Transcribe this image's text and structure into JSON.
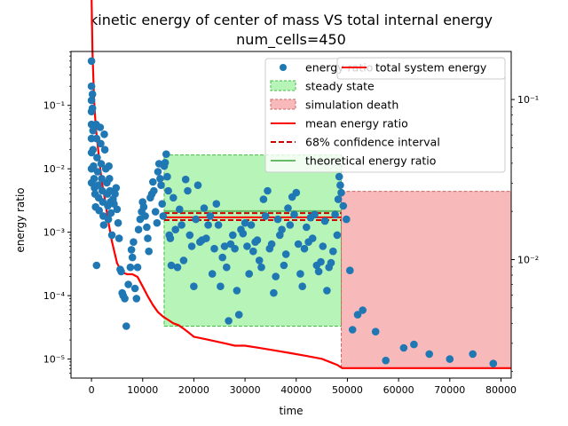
{
  "chart_data": {
    "type": "scatter",
    "title": "kinetic energy of center of mass VS total internal energy",
    "subtitle": "num_cells=450",
    "xlabel": "time",
    "ylabel": "energy ratio",
    "xlim": [
      -4000,
      82000
    ],
    "ylim_log10": [
      -5.3,
      -0.15
    ],
    "y2lim_log10": [
      -2.74,
      -0.7
    ],
    "x_ticks": [
      0,
      10000,
      20000,
      30000,
      40000,
      50000,
      60000,
      70000,
      80000
    ],
    "x_tick_labels": [
      "0",
      "10000",
      "20000",
      "30000",
      "40000",
      "50000",
      "60000",
      "70000",
      "80000"
    ],
    "y_ticks_log10": [
      -5,
      -4,
      -3,
      -2,
      -1
    ],
    "y_tick_labels": [
      "10⁻⁵",
      "10⁻⁴",
      "10⁻³",
      "10⁻²",
      "10⁻¹"
    ],
    "y2_ticks_log10": [
      -2,
      -1
    ],
    "y2_tick_labels": [
      "10⁻²",
      "10⁻¹"
    ],
    "legend_main": {
      "placement": "top-right",
      "entries": [
        {
          "label": "energy ratio",
          "kind": "marker",
          "color": "#1f77b4"
        },
        {
          "label": "steady state",
          "kind": "patch",
          "color": "#90ee90"
        },
        {
          "label": "simulation death",
          "kind": "patch",
          "color": "#f08080"
        },
        {
          "label": "mean energy ratio",
          "kind": "line",
          "color": "#ff0000"
        },
        {
          "label": "68% confidence interval",
          "kind": "dashed",
          "color": "#cc0000"
        },
        {
          "label": "theoretical energy ratio",
          "kind": "line",
          "color": "#66bb66"
        }
      ]
    },
    "legend_secondary": {
      "placement": "top-right",
      "entries": [
        {
          "label": "total system energy",
          "kind": "line",
          "color": "#ff0000"
        }
      ]
    },
    "regions": [
      {
        "name": "steady state",
        "x": [
          14200,
          48800
        ],
        "y": [
          3.3e-05,
          0.0165
        ],
        "color": "#90ee90"
      },
      {
        "name": "simulation death",
        "x": [
          48800,
          82000
        ],
        "y": [
          7.2e-06,
          0.0044
        ],
        "color": "#f08080"
      }
    ],
    "hlines": [
      {
        "name": "mean energy ratio",
        "y": 0.00172,
        "x": [
          14200,
          48800
        ],
        "color": "#ff0000",
        "style": "solid"
      },
      {
        "name": "68% confidence interval",
        "y": 0.002,
        "x": [
          14200,
          48800
        ],
        "color": "#cc0000",
        "style": "dashed"
      },
      {
        "name": "68% confidence interval",
        "y": 0.00155,
        "x": [
          14200,
          48800
        ],
        "color": "#cc0000",
        "style": "dashed"
      },
      {
        "name": "theoretical energy ratio",
        "y": 0.00215,
        "x": [
          14200,
          48800
        ],
        "color": "#66bb66",
        "style": "solid"
      }
    ],
    "total_system_energy": {
      "name": "total system energy",
      "axis": "right",
      "x": [
        0,
        200,
        500,
        800,
        1200,
        1600,
        2000,
        2600,
        3200,
        4000,
        5000,
        6000,
        7000,
        8000,
        9000,
        10000,
        11000,
        12000,
        13000,
        14000,
        15000,
        16000,
        17000,
        18000,
        19000,
        20000,
        22000,
        24000,
        26000,
        28000,
        30000,
        33000,
        36000,
        39000,
        42000,
        45000,
        48000,
        49000,
        50000,
        55000,
        60000,
        65000,
        70000,
        75000,
        80000,
        82000
      ],
      "y": [
        0.46,
        0.2,
        0.1,
        0.07,
        0.052,
        0.04,
        0.031,
        0.024,
        0.018,
        0.013,
        0.0095,
        0.0083,
        0.0081,
        0.0081,
        0.0078,
        0.0068,
        0.0059,
        0.0052,
        0.0047,
        0.0044,
        0.0042,
        0.004,
        0.0039,
        0.0037,
        0.0035,
        0.0033,
        0.0032,
        0.0031,
        0.003,
        0.0029,
        0.0029,
        0.0028,
        0.0027,
        0.0026,
        0.0025,
        0.0024,
        0.0022,
        0.0021,
        0.0021,
        0.0021,
        0.0021,
        0.0021,
        0.0021,
        0.0021,
        0.0021,
        0.0021
      ]
    },
    "energy_ratio": {
      "name": "energy ratio",
      "color": "#1f77b4",
      "points": [
        [
          0,
          0.5
        ],
        [
          0,
          0.2
        ],
        [
          0,
          0.12
        ],
        [
          0,
          0.08
        ],
        [
          0,
          0.05
        ],
        [
          0,
          0.03
        ],
        [
          0,
          0.018
        ],
        [
          0,
          0.01
        ],
        [
          0,
          0.006
        ],
        [
          200,
          0.15
        ],
        [
          200,
          0.09
        ],
        [
          300,
          0.04
        ],
        [
          300,
          0.02
        ],
        [
          400,
          0.011
        ],
        [
          500,
          0.007
        ],
        [
          600,
          0.005
        ],
        [
          700,
          0.004
        ],
        [
          800,
          0.0025
        ],
        [
          900,
          0.05
        ],
        [
          1000,
          0.03
        ],
        [
          1100,
          0.015
        ],
        [
          1200,
          0.009
        ],
        [
          1300,
          0.0055
        ],
        [
          1400,
          0.0035
        ],
        [
          1500,
          0.0022
        ],
        [
          1000,
          0.0003
        ],
        [
          1700,
          0.045
        ],
        [
          1800,
          0.025
        ],
        [
          1900,
          0.012
        ],
        [
          2000,
          0.007
        ],
        [
          2100,
          0.0045
        ],
        [
          2200,
          0.003
        ],
        [
          2300,
          0.0018
        ],
        [
          2400,
          0.0013
        ],
        [
          2500,
          0.035
        ],
        [
          2600,
          0.02
        ],
        [
          2800,
          0.01
        ],
        [
          3000,
          0.006
        ],
        [
          3100,
          0.004
        ],
        [
          3200,
          0.0026
        ],
        [
          3300,
          0.0016
        ],
        [
          3400,
          0.011
        ],
        [
          3500,
          0.007
        ],
        [
          3600,
          0.0045
        ],
        [
          3700,
          0.003
        ],
        [
          3800,
          0.002
        ],
        [
          4000,
          0.0009
        ],
        [
          4200,
          0.0033
        ],
        [
          4400,
          0.0028
        ],
        [
          4600,
          0.004
        ],
        [
          4800,
          0.005
        ],
        [
          5000,
          0.0023
        ],
        [
          5200,
          0.0014
        ],
        [
          5400,
          0.0008
        ],
        [
          5600,
          0.00026
        ],
        [
          5800,
          0.00024
        ],
        [
          6000,
          0.00011
        ],
        [
          6200,
          0.0001
        ],
        [
          6500,
          9e-05
        ],
        [
          6800,
          3.3e-05
        ],
        [
          7200,
          0.00015
        ],
        [
          7600,
          0.00028
        ],
        [
          7800,
          0.00053
        ],
        [
          8000,
          0.0004
        ],
        [
          8200,
          0.0007
        ],
        [
          8500,
          0.00013
        ],
        [
          8800,
          9e-05
        ],
        [
          9000,
          0.00028
        ],
        [
          9200,
          0.0011
        ],
        [
          9500,
          0.0016
        ],
        [
          9800,
          0.0021
        ],
        [
          10000,
          0.003
        ],
        [
          10200,
          0.0025
        ],
        [
          10500,
          0.0018
        ],
        [
          10800,
          0.0012
        ],
        [
          11000,
          0.0008
        ],
        [
          11200,
          0.0005
        ],
        [
          11500,
          0.0035
        ],
        [
          11800,
          0.004
        ],
        [
          12000,
          0.0062
        ],
        [
          12200,
          0.0045
        ],
        [
          12500,
          0.0021
        ],
        [
          12800,
          0.0014
        ],
        [
          13000,
          0.009
        ],
        [
          13200,
          0.012
        ],
        [
          13400,
          0.007
        ],
        [
          13600,
          0.0055
        ],
        [
          13800,
          0.0028
        ],
        [
          14000,
          0.0018
        ],
        [
          14200,
          0.011
        ],
        [
          14400,
          0.0125
        ],
        [
          14600,
          0.017
        ],
        [
          14800,
          0.0075
        ],
        [
          15000,
          0.0045
        ],
        [
          15200,
          0.0009
        ],
        [
          15400,
          0.0008
        ],
        [
          15600,
          0.0003
        ],
        [
          16000,
          0.0035
        ],
        [
          16400,
          0.0011
        ],
        [
          16800,
          0.00028
        ],
        [
          17200,
          0.0023
        ],
        [
          17600,
          0.0013
        ],
        [
          18000,
          0.00036
        ],
        [
          18400,
          0.0068
        ],
        [
          18800,
          0.0045
        ],
        [
          19200,
          0.0009
        ],
        [
          19600,
          0.0006
        ],
        [
          20000,
          0.00014
        ],
        [
          20400,
          0.0016
        ],
        [
          20800,
          0.0055
        ],
        [
          21200,
          0.0007
        ],
        [
          21600,
          0.00075
        ],
        [
          22000,
          0.0024
        ],
        [
          22400,
          0.0008
        ],
        [
          22800,
          0.0013
        ],
        [
          23200,
          0.0018
        ],
        [
          23600,
          0.00022
        ],
        [
          24000,
          0.00055
        ],
        [
          24400,
          0.0028
        ],
        [
          24800,
          0.0013
        ],
        [
          25200,
          0.00014
        ],
        [
          25600,
          0.0004
        ],
        [
          26000,
          0.0006
        ],
        [
          26400,
          0.00028
        ],
        [
          26800,
          4e-05
        ],
        [
          27200,
          0.00065
        ],
        [
          27600,
          0.0009
        ],
        [
          28000,
          0.00055
        ],
        [
          28400,
          0.00012
        ],
        [
          28800,
          5e-05
        ],
        [
          29200,
          0.0011
        ],
        [
          29600,
          0.00095
        ],
        [
          30000,
          0.0014
        ],
        [
          30400,
          0.0006
        ],
        [
          30800,
          0.00022
        ],
        [
          31200,
          0.0013
        ],
        [
          31600,
          0.0005
        ],
        [
          32000,
          0.0007
        ],
        [
          32400,
          0.00075
        ],
        [
          32800,
          0.00036
        ],
        [
          33200,
          0.00028
        ],
        [
          33600,
          0.0033
        ],
        [
          34000,
          0.0018
        ],
        [
          34400,
          0.0045
        ],
        [
          34800,
          0.00055
        ],
        [
          35200,
          0.00065
        ],
        [
          35600,
          0.00011
        ],
        [
          36000,
          0.0002
        ],
        [
          36400,
          0.0016
        ],
        [
          36800,
          0.0009
        ],
        [
          37200,
          0.0011
        ],
        [
          37600,
          0.0003
        ],
        [
          38000,
          0.00045
        ],
        [
          38400,
          0.0024
        ],
        [
          38800,
          0.0013
        ],
        [
          39200,
          0.0036
        ],
        [
          39600,
          0.0019
        ],
        [
          40000,
          0.0042
        ],
        [
          40400,
          0.00065
        ],
        [
          40800,
          0.00022
        ],
        [
          41200,
          0.00014
        ],
        [
          41600,
          0.00055
        ],
        [
          42000,
          0.0012
        ],
        [
          42400,
          0.0007
        ],
        [
          42800,
          0.0017
        ],
        [
          43200,
          0.0008
        ],
        [
          43600,
          0.0019
        ],
        [
          44000,
          0.0003
        ],
        [
          44400,
          0.00024
        ],
        [
          44800,
          0.00034
        ],
        [
          45200,
          0.0006
        ],
        [
          45600,
          0.0015
        ],
        [
          46000,
          0.00012
        ],
        [
          46400,
          0.00028
        ],
        [
          46800,
          0.00033
        ],
        [
          47200,
          0.0005
        ],
        [
          47600,
          0.0019
        ],
        [
          48000,
          0.0009
        ],
        [
          48200,
          0.0033
        ],
        [
          48400,
          0.0075
        ],
        [
          48600,
          0.0055
        ],
        [
          48800,
          0.0042
        ],
        [
          49200,
          0.0026
        ],
        [
          49800,
          0.0016
        ],
        [
          50500,
          0.00025
        ],
        [
          51000,
          2.9e-05
        ],
        [
          52000,
          5e-05
        ],
        [
          53000,
          5.9e-05
        ],
        [
          55500,
          2.7e-05
        ],
        [
          57500,
          9.5e-06
        ],
        [
          61000,
          1.5e-05
        ],
        [
          63000,
          1.7e-05
        ],
        [
          66000,
          1.2e-05
        ],
        [
          70000,
          1e-05
        ],
        [
          74500,
          1.2e-05
        ],
        [
          78500,
          8.5e-06
        ]
      ]
    }
  }
}
